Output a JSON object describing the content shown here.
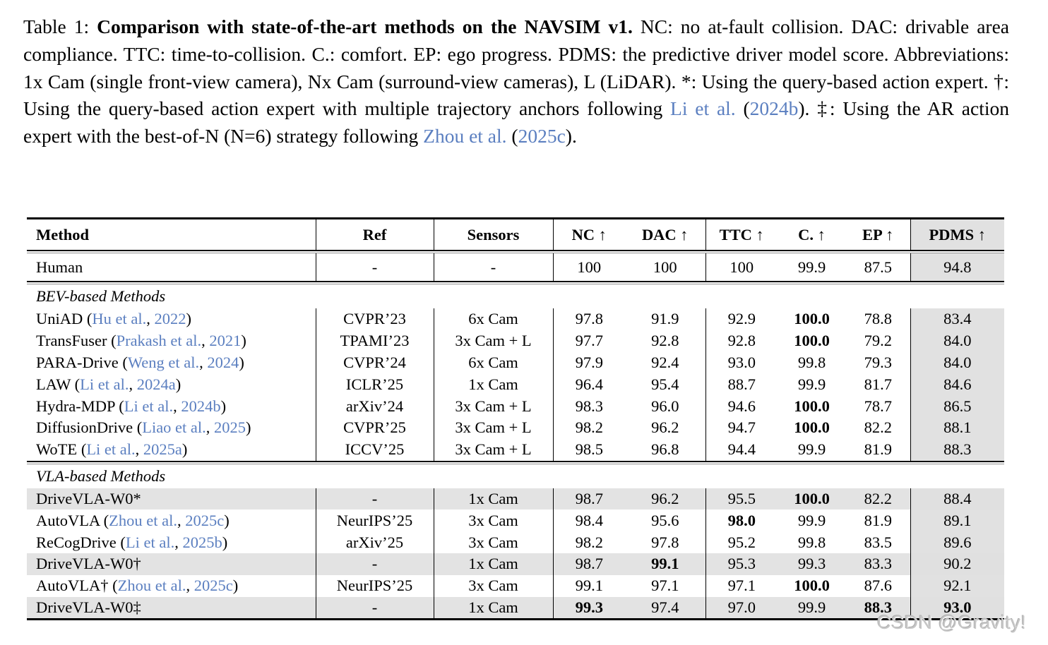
{
  "caption": {
    "segments": [
      {
        "text": "Table 1: ",
        "style": "normal"
      },
      {
        "text": "Comparison with state-of-the-art methods on the NAVSIM v1.",
        "style": "bold"
      },
      {
        "text": " NC: no at-fault collision. DAC: drivable area compliance. TTC: time-to-collision. C.: comfort. EP: ego progress. PDMS: the predictive driver model score. Abbreviations: 1x Cam (single front-view camera), Nx Cam (surround-view cameras), L (LiDAR). *: Using the query-based action expert. †: Using the query-based action expert with multiple trajectory anchors following ",
        "style": "normal"
      },
      {
        "text": "Li et al.",
        "style": "link"
      },
      {
        "text": " (",
        "style": "normal"
      },
      {
        "text": "2024b",
        "style": "link"
      },
      {
        "text": "). ‡: Using the AR action expert with the best-of-N (N=6) strategy following ",
        "style": "normal"
      },
      {
        "text": "Zhou et al.",
        "style": "link"
      },
      {
        "text": " (",
        "style": "normal"
      },
      {
        "text": "2025c",
        "style": "link"
      },
      {
        "text": ").",
        "style": "normal"
      }
    ]
  },
  "table": {
    "headers": [
      "Method",
      "Ref",
      "Sensors",
      "NC ↑",
      "DAC ↑",
      "TTC ↑",
      "C. ↑",
      "EP ↑",
      "PDMS ↑"
    ],
    "groups": [
      {
        "title": null,
        "rows": [
          {
            "method": {
              "name": "Human",
              "cite": null
            },
            "ref": "-",
            "sensors": "-",
            "values": [
              "100",
              "100",
              "100",
              "99.9",
              "87.5",
              "94.8"
            ],
            "bold": [],
            "highlight": false,
            "kind": "human"
          }
        ]
      },
      {
        "title": "BEV-based Methods",
        "rows": [
          {
            "method": {
              "name": "UniAD ",
              "cite": {
                "author": "Hu et al.",
                "year": "2022"
              }
            },
            "ref": "CVPR’23",
            "sensors": "6x Cam",
            "values": [
              "97.8",
              "91.9",
              "92.9",
              "100.0",
              "78.8",
              "83.4"
            ],
            "bold": [
              3
            ],
            "highlight": false
          },
          {
            "method": {
              "name": "TransFuser ",
              "cite": {
                "author": "Prakash et al.",
                "year": "2021"
              }
            },
            "ref": "TPAMI’23",
            "sensors": "3x Cam + L",
            "values": [
              "97.7",
              "92.8",
              "92.8",
              "100.0",
              "79.2",
              "84.0"
            ],
            "bold": [
              3
            ],
            "highlight": false
          },
          {
            "method": {
              "name": "PARA-Drive ",
              "cite": {
                "author": "Weng et al.",
                "year": "2024"
              }
            },
            "ref": "CVPR’24",
            "sensors": "6x Cam",
            "values": [
              "97.9",
              "92.4",
              "93.0",
              "99.8",
              "79.3",
              "84.0"
            ],
            "bold": [],
            "highlight": false
          },
          {
            "method": {
              "name": "LAW ",
              "cite": {
                "author": "Li et al.",
                "year": "2024a"
              }
            },
            "ref": "ICLR’25",
            "sensors": "1x Cam",
            "values": [
              "96.4",
              "95.4",
              "88.7",
              "99.9",
              "81.7",
              "84.6"
            ],
            "bold": [],
            "highlight": false
          },
          {
            "method": {
              "name": "Hydra-MDP ",
              "cite": {
                "author": "Li et al.",
                "year": "2024b"
              }
            },
            "ref": "arXiv’24",
            "sensors": "3x Cam + L",
            "values": [
              "98.3",
              "96.0",
              "94.6",
              "100.0",
              "78.7",
              "86.5"
            ],
            "bold": [
              3
            ],
            "highlight": false
          },
          {
            "method": {
              "name": "DiffusionDrive ",
              "cite": {
                "author": "Liao et al.",
                "year": "2025"
              }
            },
            "ref": "CVPR’25",
            "sensors": "3x Cam + L",
            "values": [
              "98.2",
              "96.2",
              "94.7",
              "100.0",
              "82.2",
              "88.1"
            ],
            "bold": [
              3
            ],
            "highlight": false
          },
          {
            "method": {
              "name": "WoTE ",
              "cite": {
                "author": "Li et al.",
                "year": "2025a"
              }
            },
            "ref": "ICCV’25",
            "sensors": "3x Cam + L",
            "values": [
              "98.5",
              "96.8",
              "94.4",
              "99.9",
              "81.9",
              "88.3"
            ],
            "bold": [],
            "highlight": false
          }
        ]
      },
      {
        "title": "VLA-based Methods",
        "rows": [
          {
            "method": {
              "name": "DriveVLA-W0*",
              "cite": null
            },
            "ref": "-",
            "sensors": "1x Cam",
            "values": [
              "98.7",
              "96.2",
              "95.5",
              "100.0",
              "82.2",
              "88.4"
            ],
            "bold": [
              3
            ],
            "highlight": true
          },
          {
            "method": {
              "name": "AutoVLA ",
              "cite": {
                "author": "Zhou et al.",
                "year": "2025c"
              }
            },
            "ref": "NeurIPS’25",
            "sensors": "3x Cam",
            "values": [
              "98.4",
              "95.6",
              "98.0",
              "99.9",
              "81.9",
              "89.1"
            ],
            "bold": [
              2
            ],
            "highlight": false
          },
          {
            "method": {
              "name": "ReCogDrive ",
              "cite": {
                "author": "Li et al.",
                "year": "2025b"
              }
            },
            "ref": "arXiv’25",
            "sensors": "3x Cam",
            "values": [
              "98.2",
              "97.8",
              "95.2",
              "99.8",
              "83.5",
              "89.6"
            ],
            "bold": [],
            "highlight": false
          },
          {
            "method": {
              "name": "DriveVLA-W0†",
              "cite": null
            },
            "ref": "-",
            "sensors": "1x Cam",
            "values": [
              "98.7",
              "99.1",
              "95.3",
              "99.3",
              "83.3",
              "90.2"
            ],
            "bold": [
              1
            ],
            "highlight": true
          },
          {
            "method": {
              "name": "AutoVLA† ",
              "cite": {
                "author": "Zhou et al.",
                "year": "2025c"
              }
            },
            "ref": "NeurIPS’25",
            "sensors": "3x Cam",
            "values": [
              "99.1",
              "97.1",
              "97.1",
              "100.0",
              "87.6",
              "92.1"
            ],
            "bold": [
              3
            ],
            "highlight": false
          },
          {
            "method": {
              "name": "DriveVLA-W0‡",
              "cite": null
            },
            "ref": "-",
            "sensors": "1x Cam",
            "values": [
              "99.3",
              "97.4",
              "97.0",
              "99.9",
              "88.3",
              "93.0"
            ],
            "bold": [
              0,
              4,
              5
            ],
            "highlight": true
          }
        ]
      }
    ]
  },
  "watermark": "CSDN @Gravity!",
  "colors": {
    "link_blue": "#5b7fc0",
    "pdms_column_gray": "#e1e1e1",
    "highlight_row_gray": "#e3e3e3",
    "rule_black": "#000000",
    "watermark_gray": "#c6c6c6"
  }
}
